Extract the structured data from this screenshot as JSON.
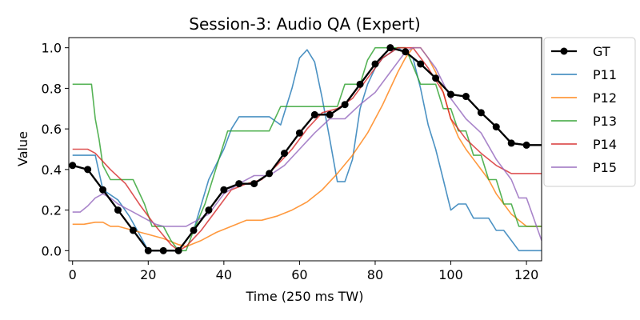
{
  "chart_data": {
    "type": "line",
    "title": "Session-3: Audio QA (Expert)",
    "xlabel": "Time (250 ms TW)",
    "ylabel": "Value",
    "xlim": [
      -1,
      124
    ],
    "ylim": [
      -0.05,
      1.05
    ],
    "xticks": [
      0,
      20,
      40,
      60,
      80,
      100,
      120
    ],
    "yticks": [
      0.0,
      0.2,
      0.4,
      0.6,
      0.8,
      1.0
    ],
    "xtick_labels": [
      "0",
      "20",
      "40",
      "60",
      "80",
      "100",
      "120"
    ],
    "ytick_labels": [
      "0.0",
      "0.2",
      "0.4",
      "0.6",
      "0.8",
      "1.0"
    ],
    "grid": false,
    "legend_position": "right, outside plot area",
    "series": [
      {
        "name": "GT",
        "color": "#000000",
        "markers": true,
        "x": [
          0,
          4,
          8,
          12,
          16,
          20,
          24,
          28,
          32,
          36,
          40,
          44,
          48,
          52,
          56,
          60,
          64,
          68,
          72,
          76,
          80,
          84,
          88,
          92,
          96,
          100,
          104,
          108,
          112,
          116,
          120,
          124
        ],
        "y": [
          0.42,
          0.4,
          0.3,
          0.2,
          0.1,
          0.0,
          0.0,
          0.0,
          0.1,
          0.2,
          0.3,
          0.33,
          0.33,
          0.38,
          0.48,
          0.58,
          0.67,
          0.67,
          0.72,
          0.82,
          0.92,
          1.0,
          0.98,
          0.92,
          0.85,
          0.77,
          0.76,
          0.68,
          0.61,
          0.53,
          0.52,
          0.52
        ]
      },
      {
        "name": "P11",
        "color": "#1f77b4",
        "x": [
          0,
          6,
          8,
          12,
          15,
          18,
          20,
          24,
          28,
          32,
          36,
          40,
          42,
          44,
          48,
          52,
          55,
          58,
          60,
          62,
          64,
          66,
          68,
          70,
          72,
          74,
          76,
          78,
          80,
          82,
          86,
          90,
          92,
          94,
          96,
          98,
          100,
          102,
          104,
          106,
          108,
          110,
          112,
          114,
          116,
          118,
          120,
          124
        ],
        "y": [
          0.47,
          0.47,
          0.3,
          0.25,
          0.17,
          0.07,
          0.0,
          0.0,
          0.0,
          0.1,
          0.35,
          0.5,
          0.6,
          0.66,
          0.66,
          0.66,
          0.62,
          0.8,
          0.95,
          0.99,
          0.93,
          0.75,
          0.55,
          0.34,
          0.34,
          0.45,
          0.7,
          0.82,
          0.9,
          0.95,
          1.0,
          0.95,
          0.8,
          0.62,
          0.5,
          0.35,
          0.2,
          0.23,
          0.23,
          0.16,
          0.16,
          0.16,
          0.1,
          0.1,
          0.05,
          0.0,
          0.0,
          0.0
        ]
      },
      {
        "name": "P12",
        "color": "#ff7f0e",
        "x": [
          0,
          3,
          6,
          8,
          10,
          12,
          16,
          20,
          24,
          28,
          30,
          34,
          38,
          42,
          46,
          50,
          54,
          58,
          62,
          66,
          70,
          74,
          78,
          82,
          86,
          88,
          90,
          92,
          94,
          96,
          98,
          100,
          102,
          104,
          106,
          108,
          110,
          112,
          116,
          120,
          124
        ],
        "y": [
          0.13,
          0.13,
          0.14,
          0.14,
          0.12,
          0.12,
          0.1,
          0.08,
          0.06,
          0.03,
          0.02,
          0.05,
          0.09,
          0.12,
          0.15,
          0.15,
          0.17,
          0.2,
          0.24,
          0.3,
          0.38,
          0.47,
          0.58,
          0.72,
          0.88,
          0.95,
          1.0,
          1.0,
          0.95,
          0.88,
          0.78,
          0.65,
          0.56,
          0.5,
          0.45,
          0.4,
          0.35,
          0.28,
          0.18,
          0.12,
          0.12
        ]
      },
      {
        "name": "P13",
        "color": "#2ca02c",
        "x": [
          0,
          5,
          6,
          7,
          8,
          10,
          13,
          16,
          19,
          21,
          24,
          26,
          28,
          30,
          32,
          35,
          37,
          39,
          41,
          44,
          48,
          52,
          55,
          60,
          65,
          70,
          72,
          74,
          76,
          78,
          80,
          84,
          88,
          92,
          94,
          96,
          98,
          100,
          102,
          104,
          106,
          108,
          110,
          112,
          114,
          116,
          118,
          120,
          124
        ],
        "y": [
          0.82,
          0.82,
          0.65,
          0.55,
          0.42,
          0.35,
          0.35,
          0.35,
          0.23,
          0.12,
          0.12,
          0.05,
          0.0,
          0.0,
          0.1,
          0.23,
          0.35,
          0.47,
          0.59,
          0.59,
          0.59,
          0.59,
          0.71,
          0.71,
          0.71,
          0.71,
          0.82,
          0.82,
          0.82,
          0.94,
          1.0,
          1.0,
          1.0,
          0.82,
          0.82,
          0.82,
          0.7,
          0.7,
          0.59,
          0.59,
          0.47,
          0.47,
          0.35,
          0.35,
          0.23,
          0.23,
          0.12,
          0.12,
          0.12
        ]
      },
      {
        "name": "P14",
        "color": "#d62728",
        "x": [
          0,
          4,
          6,
          10,
          14,
          18,
          22,
          26,
          28,
          30,
          34,
          38,
          42,
          46,
          50,
          54,
          58,
          62,
          66,
          70,
          74,
          78,
          82,
          86,
          90,
          94,
          98,
          100,
          104,
          108,
          112,
          116,
          120,
          124
        ],
        "y": [
          0.5,
          0.5,
          0.48,
          0.4,
          0.33,
          0.22,
          0.12,
          0.03,
          0.0,
          0.02,
          0.1,
          0.2,
          0.3,
          0.33,
          0.35,
          0.42,
          0.5,
          0.6,
          0.68,
          0.7,
          0.75,
          0.85,
          0.95,
          1.0,
          1.0,
          0.9,
          0.78,
          0.65,
          0.55,
          0.48,
          0.42,
          0.38,
          0.38,
          0.38
        ]
      },
      {
        "name": "P15",
        "color": "#9467bd",
        "x": [
          0,
          2,
          4,
          6,
          8,
          10,
          12,
          14,
          16,
          18,
          20,
          22,
          24,
          26,
          28,
          30,
          32,
          34,
          36,
          40,
          44,
          48,
          52,
          56,
          60,
          64,
          68,
          72,
          76,
          80,
          84,
          88,
          90,
          92,
          96,
          100,
          104,
          108,
          112,
          116,
          118,
          120,
          124
        ],
        "y": [
          0.19,
          0.19,
          0.22,
          0.26,
          0.28,
          0.26,
          0.23,
          0.21,
          0.19,
          0.17,
          0.15,
          0.13,
          0.12,
          0.12,
          0.12,
          0.12,
          0.14,
          0.16,
          0.18,
          0.28,
          0.33,
          0.37,
          0.37,
          0.42,
          0.5,
          0.58,
          0.65,
          0.65,
          0.72,
          0.78,
          0.88,
          0.98,
          1.0,
          1.0,
          0.9,
          0.75,
          0.65,
          0.58,
          0.45,
          0.35,
          0.26,
          0.26,
          0.05
        ]
      }
    ]
  }
}
